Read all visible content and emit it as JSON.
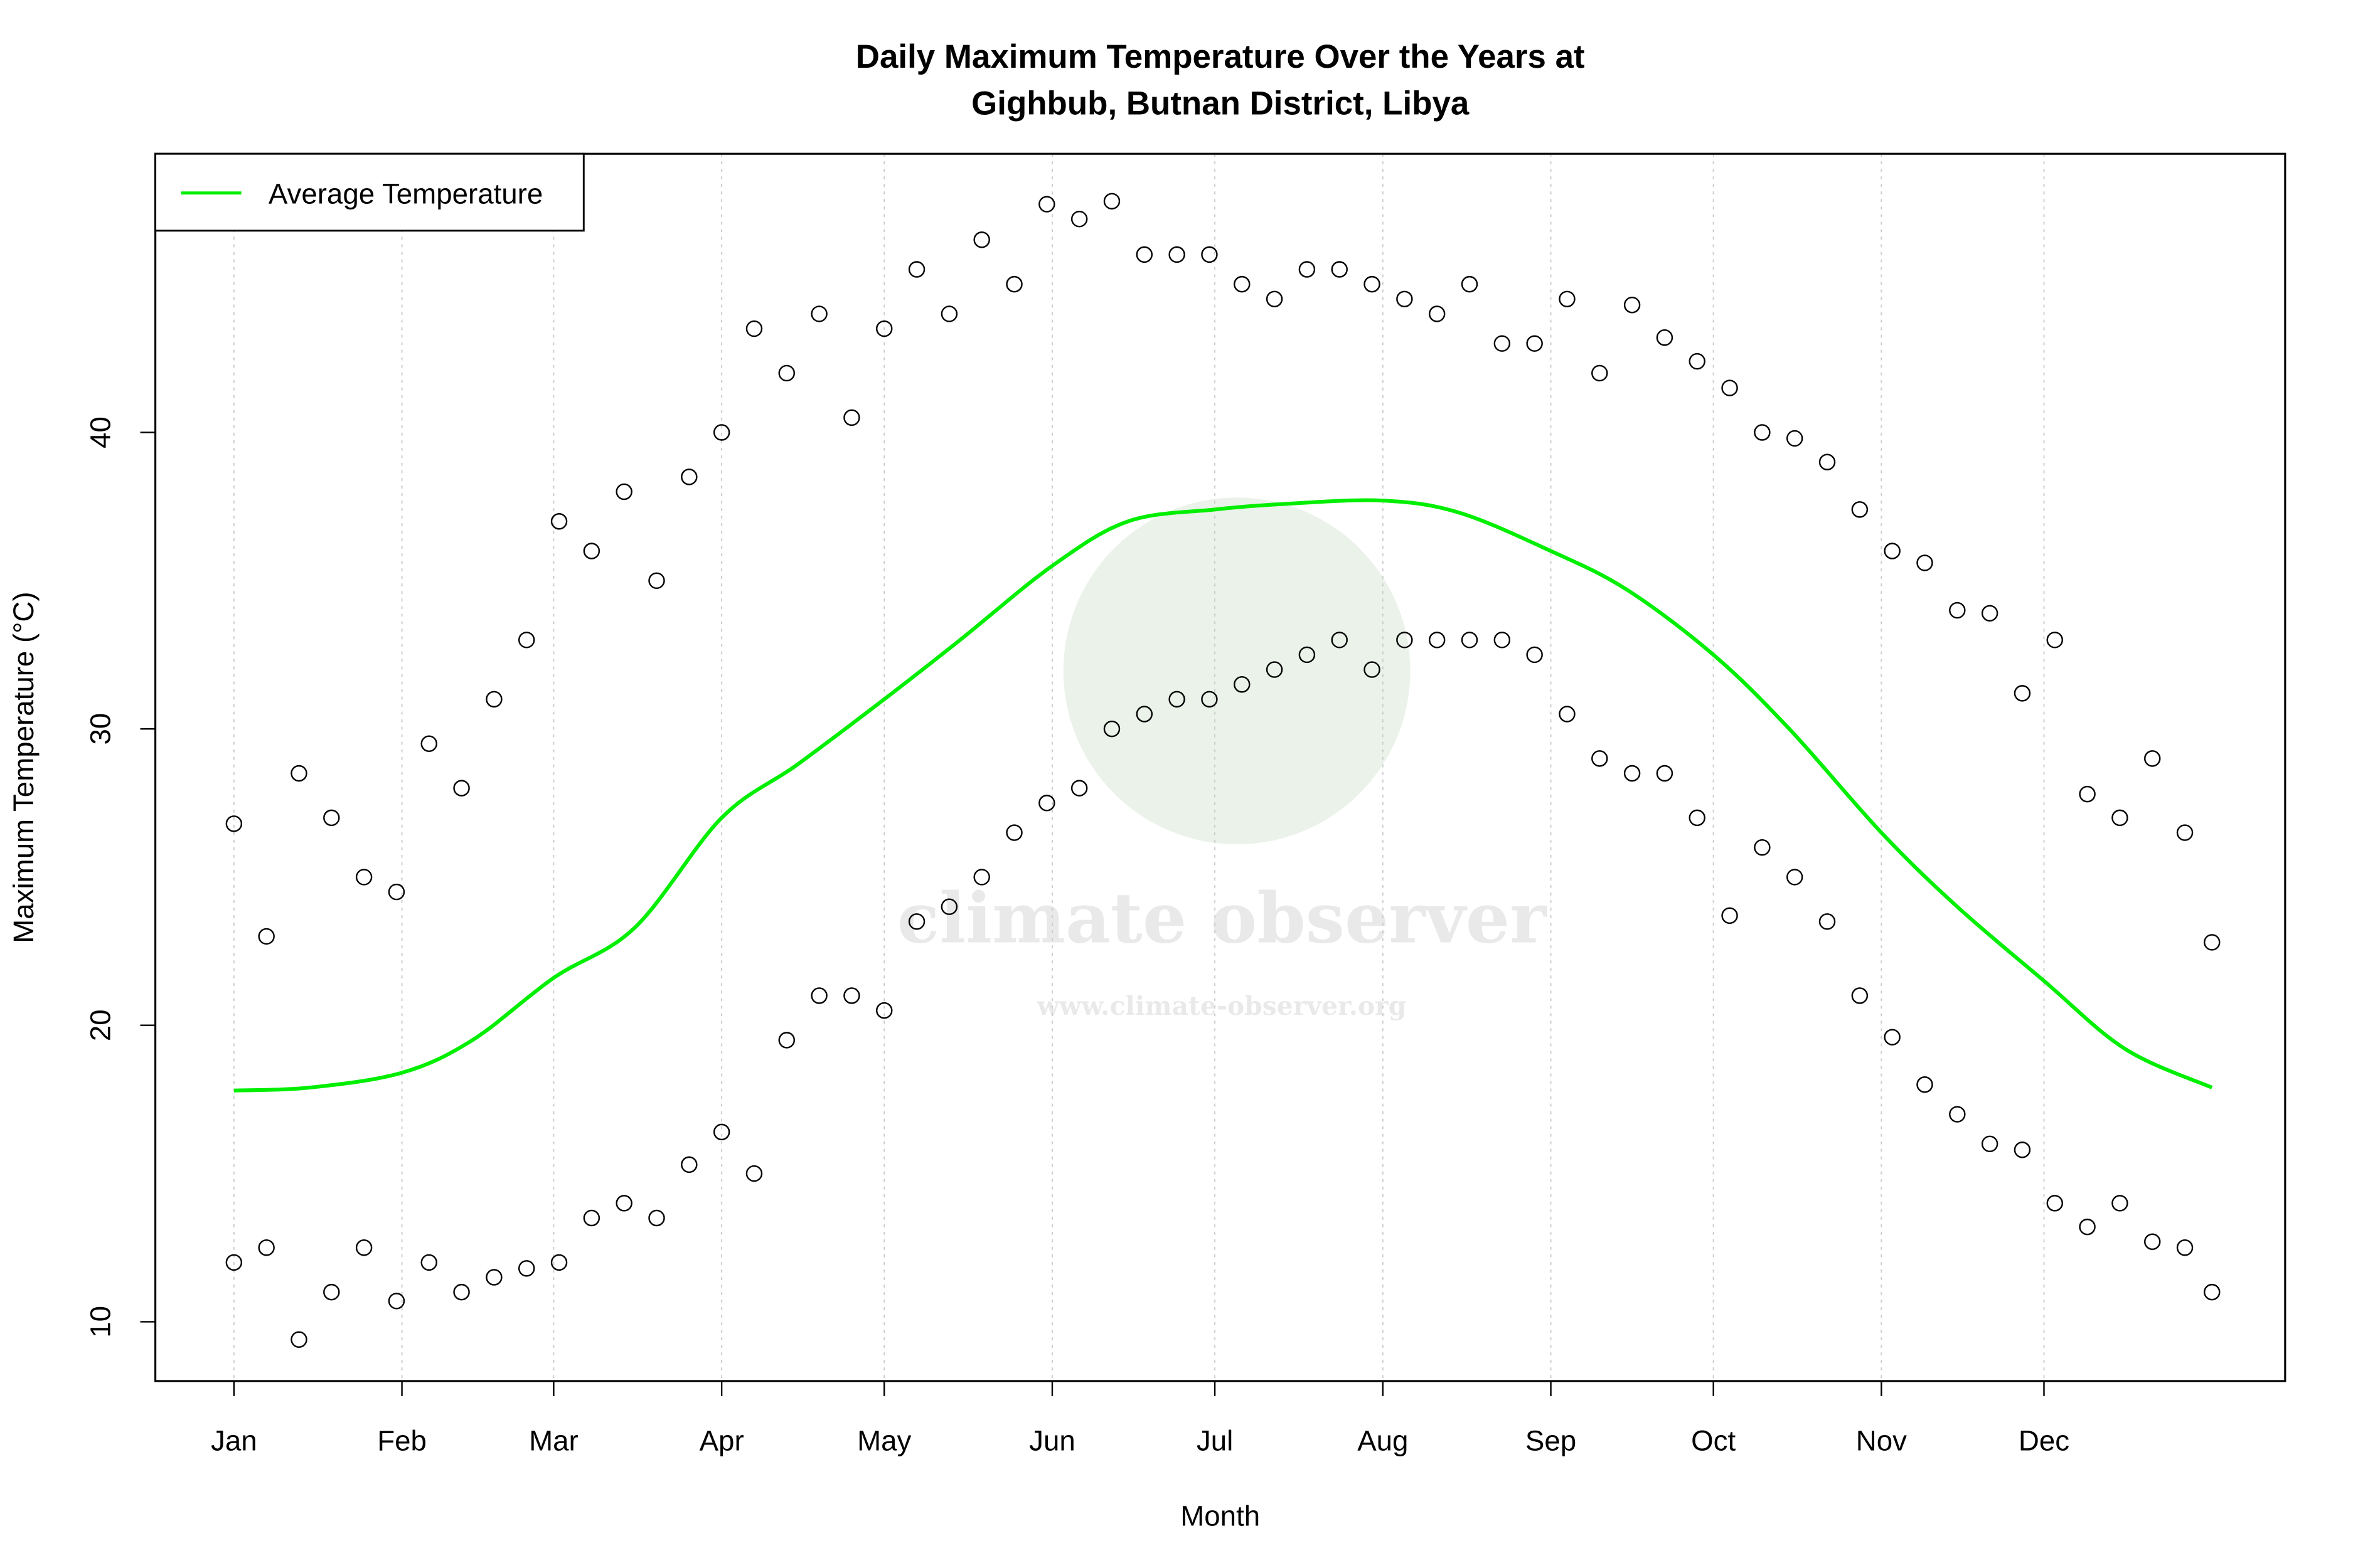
{
  "chart_data": {
    "type": "scatter",
    "title_line1": "Daily Maximum Temperature Over the Years at",
    "title_line2": "Gighbub, Butnan District, Libya",
    "xlabel": "Month",
    "ylabel": "Maximum Temperature (°C)",
    "xlim": [
      -13.5,
      379.5
    ],
    "ylim": [
      8,
      49.4
    ],
    "grid": "vertical dotted at month starts",
    "legend_placement": "top-left",
    "x_ticks": [
      {
        "day": 1,
        "label": "Jan"
      },
      {
        "day": 32,
        "label": "Feb"
      },
      {
        "day": 60,
        "label": "Mar"
      },
      {
        "day": 91,
        "label": "Apr"
      },
      {
        "day": 121,
        "label": "May"
      },
      {
        "day": 152,
        "label": "Jun"
      },
      {
        "day": 182,
        "label": "Jul"
      },
      {
        "day": 213,
        "label": "Aug"
      },
      {
        "day": 244,
        "label": "Sep"
      },
      {
        "day": 274,
        "label": "Oct"
      },
      {
        "day": 305,
        "label": "Nov"
      },
      {
        "day": 335,
        "label": "Dec"
      }
    ],
    "y_ticks": [
      10,
      20,
      30,
      40
    ],
    "series": [
      {
        "name": "Average Temperature",
        "kind": "line",
        "color": "#00ee00",
        "points": [
          [
            1,
            17.8
          ],
          [
            15,
            17.9
          ],
          [
            32,
            18.4
          ],
          [
            45,
            19.5
          ],
          [
            60,
            21.6
          ],
          [
            75,
            23.3
          ],
          [
            91,
            27
          ],
          [
            105,
            28.8
          ],
          [
            121,
            31
          ],
          [
            135,
            33
          ],
          [
            152,
            35.5
          ],
          [
            166,
            37
          ],
          [
            182,
            37.4
          ],
          [
            196,
            37.6
          ],
          [
            213,
            37.7
          ],
          [
            227,
            37.3
          ],
          [
            244,
            36
          ],
          [
            258,
            34.7
          ],
          [
            274,
            32.5
          ],
          [
            288,
            30
          ],
          [
            305,
            26.5
          ],
          [
            319,
            24
          ],
          [
            335,
            21.5
          ],
          [
            350,
            19.2
          ],
          [
            366,
            17.9
          ]
        ]
      },
      {
        "kind": "points",
        "color": "#000000",
        "points": [
          [
            1,
            26.8
          ],
          [
            1,
            12
          ],
          [
            7,
            23
          ],
          [
            7,
            12.5
          ],
          [
            13,
            28.5
          ],
          [
            13,
            9.4
          ],
          [
            19,
            27
          ],
          [
            19,
            11
          ],
          [
            25,
            25
          ],
          [
            25,
            12.5
          ],
          [
            31,
            24.5
          ],
          [
            31,
            10.7
          ],
          [
            37,
            29.5
          ],
          [
            37,
            12
          ],
          [
            43,
            28
          ],
          [
            43,
            11
          ],
          [
            49,
            31
          ],
          [
            49,
            11.5
          ],
          [
            55,
            33
          ],
          [
            55,
            11.8
          ],
          [
            61,
            37
          ],
          [
            61,
            12
          ],
          [
            67,
            36
          ],
          [
            67,
            13.5
          ],
          [
            73,
            38
          ],
          [
            73,
            14
          ],
          [
            79,
            35
          ],
          [
            79,
            13.5
          ],
          [
            85,
            38.5
          ],
          [
            85,
            15.3
          ],
          [
            91,
            40
          ],
          [
            91,
            16.4
          ],
          [
            97,
            43.5
          ],
          [
            97,
            15
          ],
          [
            103,
            42
          ],
          [
            103,
            19.5
          ],
          [
            109,
            44
          ],
          [
            109,
            21
          ],
          [
            115,
            40.5
          ],
          [
            115,
            21
          ],
          [
            121,
            43.5
          ],
          [
            121,
            20.5
          ],
          [
            127,
            45.5
          ],
          [
            127,
            23.5
          ],
          [
            133,
            44
          ],
          [
            133,
            24
          ],
          [
            139,
            46.5
          ],
          [
            139,
            25
          ],
          [
            145,
            45
          ],
          [
            145,
            26.5
          ],
          [
            151,
            47.7
          ],
          [
            151,
            27.5
          ],
          [
            157,
            47.2
          ],
          [
            157,
            28
          ],
          [
            163,
            47.8
          ],
          [
            163,
            30
          ],
          [
            169,
            46
          ],
          [
            169,
            30.5
          ],
          [
            175,
            46
          ],
          [
            175,
            31
          ],
          [
            181,
            46
          ],
          [
            181,
            31
          ],
          [
            187,
            45
          ],
          [
            187,
            31.5
          ],
          [
            193,
            44.5
          ],
          [
            193,
            32
          ],
          [
            199,
            45.5
          ],
          [
            199,
            32.5
          ],
          [
            205,
            45.5
          ],
          [
            205,
            33
          ],
          [
            211,
            45
          ],
          [
            211,
            32
          ],
          [
            217,
            44.5
          ],
          [
            217,
            33
          ],
          [
            223,
            44
          ],
          [
            223,
            33
          ],
          [
            229,
            45
          ],
          [
            229,
            33
          ],
          [
            235,
            43
          ],
          [
            235,
            33
          ],
          [
            241,
            43
          ],
          [
            241,
            32.5
          ],
          [
            247,
            44.5
          ],
          [
            247,
            30.5
          ],
          [
            253,
            42
          ],
          [
            253,
            29
          ],
          [
            259,
            44.3
          ],
          [
            259,
            28.5
          ],
          [
            265,
            43.2
          ],
          [
            265,
            28.5
          ],
          [
            271,
            42.4
          ],
          [
            271,
            27
          ],
          [
            277,
            41.5
          ],
          [
            277,
            23.7
          ],
          [
            283,
            40
          ],
          [
            283,
            26
          ],
          [
            289,
            39.8
          ],
          [
            289,
            25
          ],
          [
            295,
            39
          ],
          [
            295,
            23.5
          ],
          [
            301,
            37.4
          ],
          [
            301,
            21
          ],
          [
            307,
            36
          ],
          [
            307,
            19.6
          ],
          [
            313,
            35.6
          ],
          [
            313,
            18
          ],
          [
            319,
            34
          ],
          [
            319,
            17
          ],
          [
            325,
            33.9
          ],
          [
            325,
            16
          ],
          [
            331,
            31.2
          ],
          [
            331,
            15.8
          ],
          [
            337,
            33
          ],
          [
            337,
            14
          ],
          [
            343,
            27.8
          ],
          [
            343,
            13.2
          ],
          [
            349,
            27
          ],
          [
            349,
            14
          ],
          [
            355,
            29
          ],
          [
            355,
            12.7
          ],
          [
            361,
            26.5
          ],
          [
            361,
            12.5
          ],
          [
            366,
            22.8
          ],
          [
            366,
            11
          ]
        ]
      }
    ],
    "watermark": "climate observer www.climate-observer.org"
  }
}
